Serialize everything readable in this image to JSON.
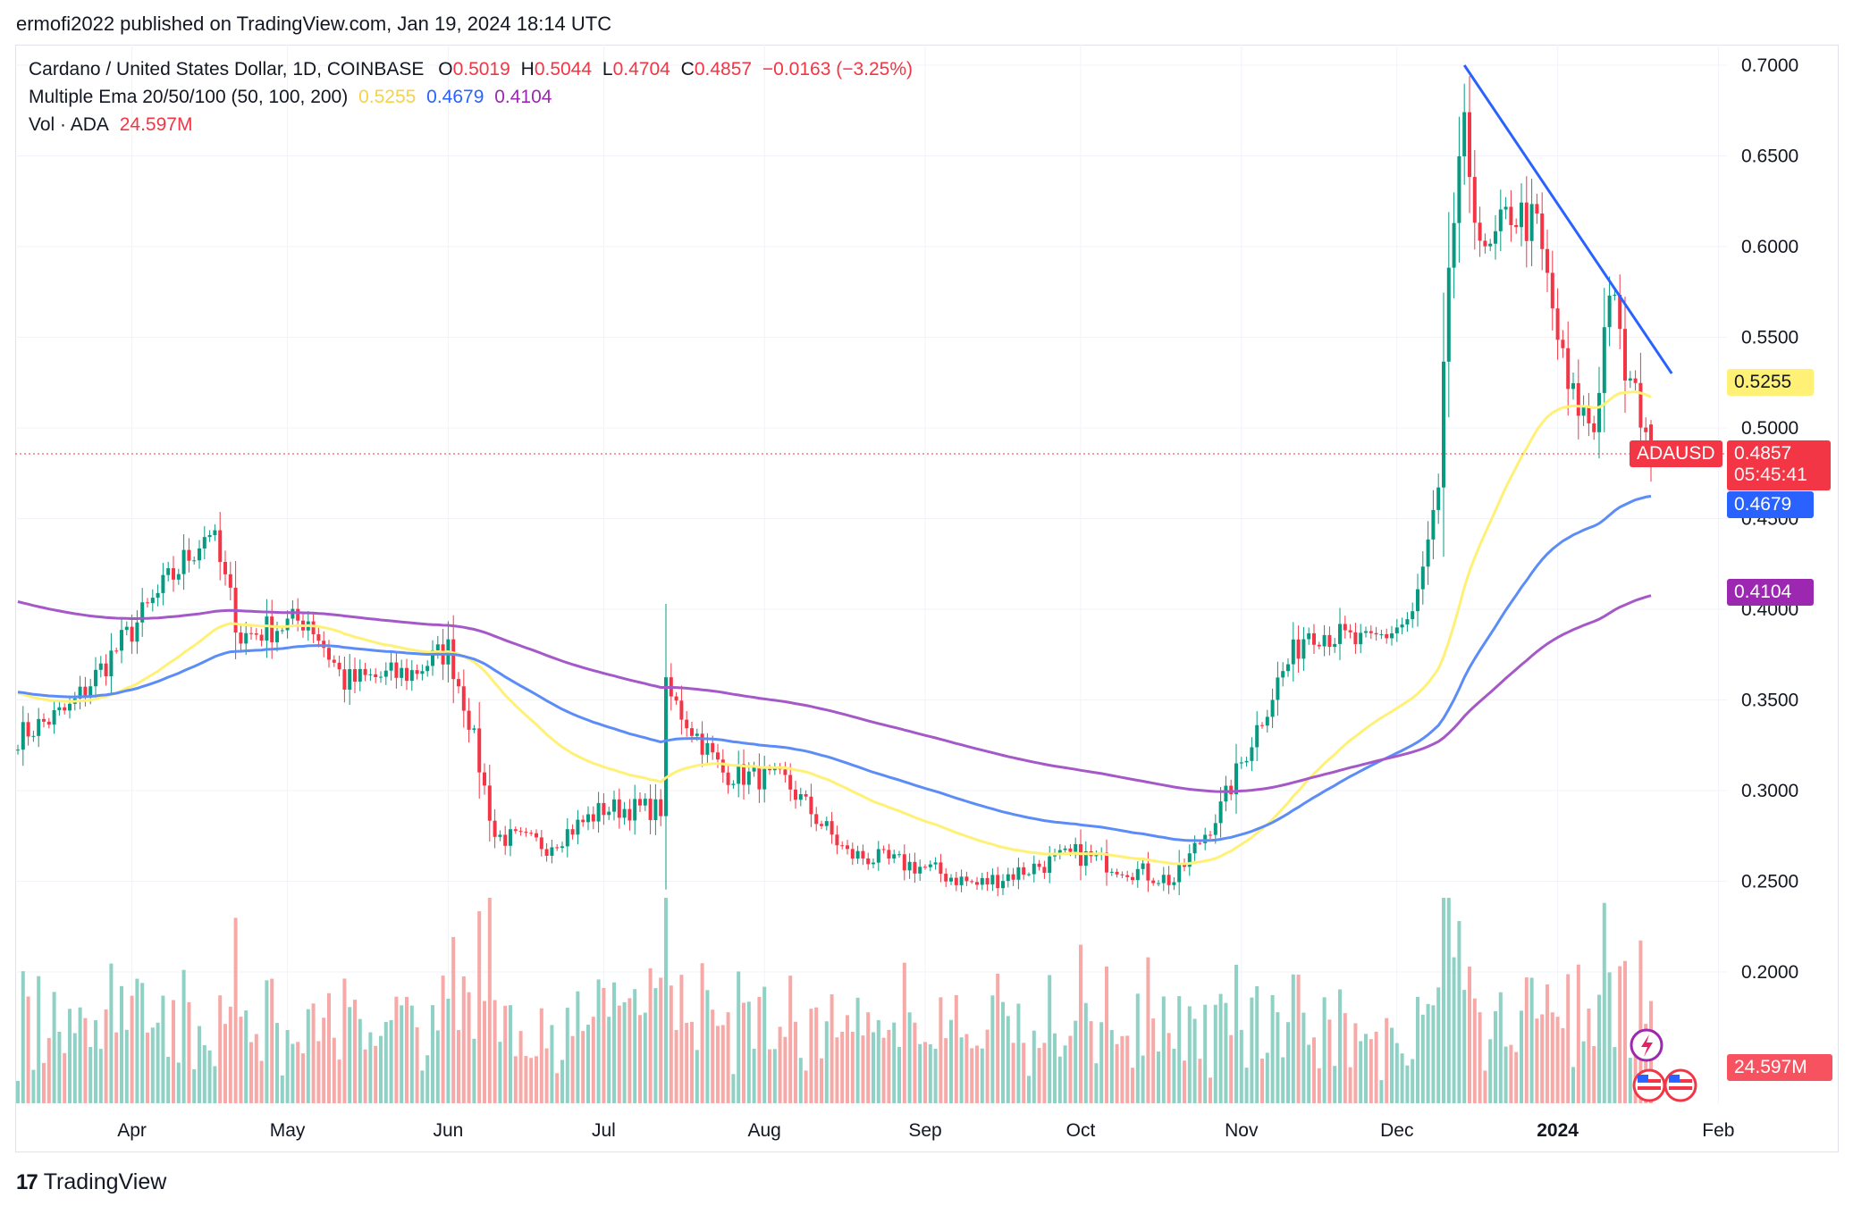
{
  "publisher": "ermofi2022 published on TradingView.com, Jan 19, 2024 18:14 UTC",
  "legend": {
    "symbol": "Cardano / United States Dollar, 1D, COINBASE",
    "o_label": "O",
    "o_value": "0.5019",
    "h_label": "H",
    "h_value": "0.5044",
    "l_label": "L",
    "l_value": "0.4704",
    "c_label": "C",
    "c_value": "0.4857",
    "change": "−0.0163 (−3.25%)",
    "ema_label": "Multiple Ema 20/50/100 (50, 100, 200)",
    "ema1": "0.5255",
    "ema2": "0.4679",
    "ema3": "0.4104",
    "vol_label": "Vol · ADA",
    "vol_value": "24.597M"
  },
  "price_tags": {
    "ema1": "0.5255",
    "symbol_name": "ADAUSD",
    "close": "0.4857",
    "countdown": "05:45:41",
    "ema2": "0.4679",
    "ema3": "0.4104",
    "volume": "24.597M"
  },
  "colors": {
    "up": "#089981",
    "down": "#f23645",
    "vol_up": "#8fd1c4",
    "vol_down": "#f7a9a7",
    "ema1": "#fff176",
    "ema2": "#5b8cf7",
    "ema3": "#a558c8",
    "trendline": "#2962ff"
  },
  "brand": "TradingView",
  "chart_data": {
    "type": "candlestick",
    "title": "Cardano / United States Dollar, 1D, COINBASE",
    "y_ticks": [
      "0.7000",
      "0.6500",
      "0.6000",
      "0.5500",
      "0.5000",
      "0.4500",
      "0.4000",
      "0.3500",
      "0.3000",
      "0.2500",
      "0.2000"
    ],
    "x_ticks": [
      "Apr",
      "May",
      "Jun",
      "Jul",
      "Aug",
      "Sep",
      "Oct",
      "Nov",
      "Dec",
      "2024",
      "Feb"
    ],
    "ylim": [
      0.16,
      0.72
    ],
    "anchor_points": [
      {
        "date": "2023-03-10",
        "close": 0.33
      },
      {
        "date": "2023-03-20",
        "close": 0.345
      },
      {
        "date": "2023-03-31",
        "close": 0.385
      },
      {
        "date": "2023-04-16",
        "close": 0.445
      },
      {
        "date": "2023-04-22",
        "close": 0.385
      },
      {
        "date": "2023-05-05",
        "close": 0.395
      },
      {
        "date": "2023-05-12",
        "close": 0.36
      },
      {
        "date": "2023-05-25",
        "close": 0.365
      },
      {
        "date": "2023-06-01",
        "close": 0.378
      },
      {
        "date": "2023-06-05",
        "close": 0.34
      },
      {
        "date": "2023-06-10",
        "close": 0.275
      },
      {
        "date": "2023-06-20",
        "close": 0.27
      },
      {
        "date": "2023-07-01",
        "close": 0.29
      },
      {
        "date": "2023-07-12",
        "close": 0.29
      },
      {
        "date": "2023-07-13",
        "close": 0.355
      },
      {
        "date": "2023-07-24",
        "close": 0.31
      },
      {
        "date": "2023-08-05",
        "close": 0.305
      },
      {
        "date": "2023-08-17",
        "close": 0.265
      },
      {
        "date": "2023-08-31",
        "close": 0.258
      },
      {
        "date": "2023-09-11",
        "close": 0.248
      },
      {
        "date": "2023-09-30",
        "close": 0.265
      },
      {
        "date": "2023-10-19",
        "close": 0.25
      },
      {
        "date": "2023-10-28",
        "close": 0.29
      },
      {
        "date": "2023-11-08",
        "close": 0.36
      },
      {
        "date": "2023-11-14",
        "close": 0.39
      },
      {
        "date": "2023-11-25",
        "close": 0.38
      },
      {
        "date": "2023-12-04",
        "close": 0.395
      },
      {
        "date": "2023-12-09",
        "close": 0.46
      },
      {
        "date": "2023-12-11",
        "close": 0.59
      },
      {
        "date": "2023-12-14",
        "close": 0.66
      },
      {
        "date": "2023-12-18",
        "close": 0.59
      },
      {
        "date": "2023-12-23",
        "close": 0.62
      },
      {
        "date": "2023-12-28",
        "close": 0.61
      },
      {
        "date": "2024-01-03",
        "close": 0.52
      },
      {
        "date": "2024-01-08",
        "close": 0.5
      },
      {
        "date": "2024-01-11",
        "close": 0.58
      },
      {
        "date": "2024-01-14",
        "close": 0.53
      },
      {
        "date": "2024-01-18",
        "close": 0.502
      },
      {
        "date": "2024-01-19",
        "close": 0.4857
      }
    ],
    "last_candle": {
      "date": "2024-01-19",
      "open": 0.5019,
      "high": 0.5044,
      "low": 0.4704,
      "close": 0.4857
    },
    "series": [
      {
        "name": "0.5255",
        "last_value": 0.5255
      },
      {
        "name": "0.4679",
        "last_value": 0.4679
      },
      {
        "name": "0.4104",
        "last_value": 0.4104
      }
    ],
    "trendline": {
      "start": {
        "date": "2023-12-14",
        "value": 0.7
      },
      "end": {
        "date": "2024-01-23",
        "value": 0.53
      }
    },
    "volume_last": "24.597M",
    "grid": true
  }
}
